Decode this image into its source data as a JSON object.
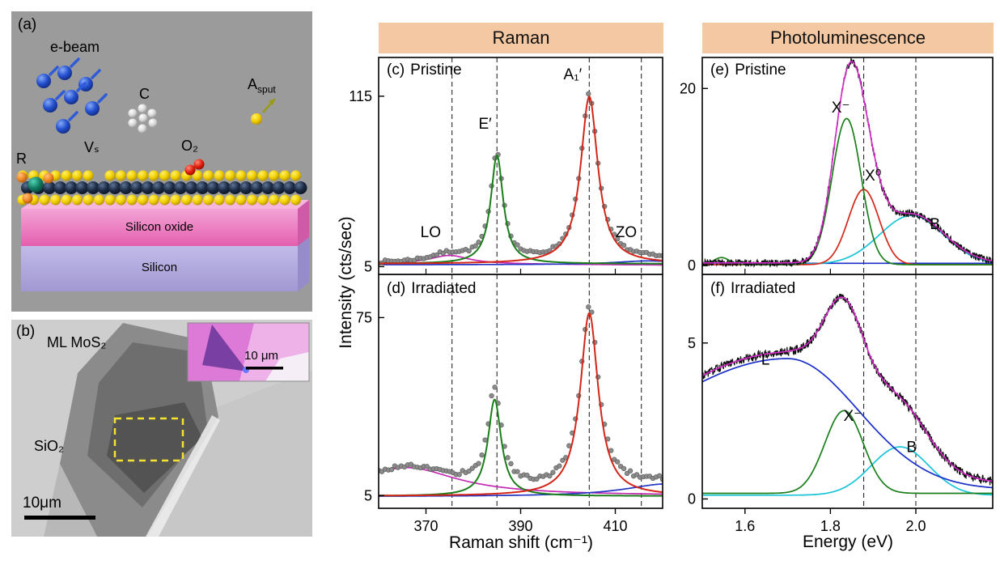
{
  "colors": {
    "header_bg": "#f3c8a2",
    "panel_a_bg": "#9b9b9b",
    "panel_b_bg": "#c7c7c7"
  },
  "headers": {
    "raman": "Raman",
    "pl": "Photoluminescence"
  },
  "axes": {
    "intensity_label": "Intensity (cts/sec)",
    "raman_xlabel": "Raman shift (cm⁻¹)",
    "pl_xlabel": "Energy (eV)"
  },
  "panel_labels": {
    "c": "(c)",
    "c_title": "Pristine",
    "d": "(d)",
    "d_title": "Irradiated",
    "e": "(e)",
    "e_title": "Pristine",
    "f": "(f)",
    "f_title": "Irradiated"
  },
  "panel_a": {
    "label": "(a)",
    "ebeam_label": "e-beam",
    "carbon_label": "C",
    "asput_label_main": "A",
    "asput_label_sub": "sput",
    "r_label": "R",
    "vs_label": "Vₛ",
    "o2_label": "O₂",
    "oxide_label": "Silicon oxide",
    "silicon_label": "Silicon"
  },
  "panel_b": {
    "label": "(b)",
    "flake_label": "ML MoS₂",
    "substrate_label": "SiO₂",
    "scalebar_label": "10μm",
    "inset_scalebar_label": "10 μm"
  },
  "chart_data": [
    {
      "id": "chart-raman-pristine",
      "type": "line",
      "panel": "(c)",
      "title": "Pristine",
      "xlabel": "Raman shift (cm⁻¹)",
      "ylabel": "Intensity (cts/sec)",
      "xlim": [
        360,
        420
      ],
      "ylim": [
        0,
        140
      ],
      "xticks": [
        370,
        390,
        410
      ],
      "xtick_labels": [],
      "yticks": [
        115,
        5
      ],
      "ytick_labels": [
        "115",
        "5"
      ],
      "dashed_x": [
        375.5,
        385,
        404.5,
        415.5
      ],
      "annotations": [
        {
          "text": "LO",
          "x": 371,
          "y": 24
        },
        {
          "text": "E′",
          "x": 382.5,
          "y": 94
        },
        {
          "text": "A₁′",
          "x": 401,
          "y": 126
        },
        {
          "text": "ZO",
          "x": 412.3,
          "y": 24
        }
      ],
      "series": [
        {
          "name": "LO-background-fit",
          "style": "line",
          "color": "#c42cb4",
          "width": 1.7,
          "baseline": 7,
          "tilt": -1,
          "peaks": [
            {
              "shape": "lorentzian",
              "center": 375,
              "amp": 5.5,
              "w": 5
            }
          ]
        },
        {
          "name": "ZO-background-fit",
          "style": "line",
          "color": "#2434c4",
          "width": 1.7,
          "baseline": 6.2,
          "peaks": [
            {
              "shape": "lorentzian",
              "center": 417,
              "amp": 2.5,
              "w": 9
            }
          ]
        },
        {
          "name": "measured-data",
          "style": "scatter",
          "color": "#8c8c8c",
          "stroke": "#5e5e5e",
          "r": 2.8,
          "samples": 88,
          "noise": 1.0,
          "seed": 7,
          "baseline": 7,
          "peaks": [
            {
              "shape": "lorentzian",
              "center": 375,
              "amp": 5.5,
              "w": 5
            },
            {
              "shape": "lorentzian",
              "center": 385,
              "amp": 70,
              "w": 1.6
            },
            {
              "shape": "lorentzian",
              "center": 404.5,
              "amp": 108,
              "w": 2.2
            },
            {
              "shape": "lorentzian",
              "center": 417,
              "amp": 2.5,
              "w": 9
            }
          ]
        },
        {
          "name": "E-prime-fit",
          "style": "line",
          "color": "#1b7e1b",
          "width": 2,
          "baseline": 6.8,
          "peaks": [
            {
              "shape": "lorentzian",
              "center": 385,
              "amp": 70,
              "w": 1.6
            }
          ]
        },
        {
          "name": "A1-prime-fit",
          "style": "line",
          "color": "#d42618",
          "width": 2,
          "baseline": 6.8,
          "peaks": [
            {
              "shape": "lorentzian",
              "center": 404.5,
              "amp": 108,
              "w": 2.2
            }
          ]
        }
      ]
    },
    {
      "id": "chart-raman-irradiated",
      "type": "line",
      "panel": "(d)",
      "title": "Irradiated",
      "xlabel": "Raman shift (cm⁻¹)",
      "ylabel": "Intensity (cts/sec)",
      "xlim": [
        360,
        420
      ],
      "ylim": [
        0,
        92
      ],
      "xticks": [
        370,
        390,
        410
      ],
      "xtick_labels": [
        "370",
        "390",
        "410"
      ],
      "yticks": [
        75,
        5
      ],
      "ytick_labels": [
        "75",
        "5"
      ],
      "dashed_x": [
        375.5,
        385,
        404.5,
        415.5
      ],
      "annotations": [],
      "series": [
        {
          "name": "defect-background-fit",
          "style": "line",
          "color": "#c42cb4",
          "width": 1.7,
          "baseline": 5,
          "peaks": [
            {
              "shape": "lorentzian",
              "center": 366,
              "amp": 11,
              "w": 13
            }
          ]
        },
        {
          "name": "background-fit",
          "style": "line",
          "color": "#2434c4",
          "width": 1.7,
          "baseline": 4.6,
          "peaks": [
            {
              "shape": "lorentzian",
              "center": 421,
              "amp": 5,
              "w": 11
            }
          ]
        },
        {
          "name": "measured-data",
          "style": "scatter",
          "color": "#8c8c8c",
          "stroke": "#5e5e5e",
          "r": 2.8,
          "samples": 88,
          "noise": 0.9,
          "seed": 17,
          "baseline": 5,
          "peaks": [
            {
              "shape": "lorentzian",
              "center": 366,
              "amp": 11,
              "w": 13
            },
            {
              "shape": "lorentzian",
              "center": 384.5,
              "amp": 38,
              "w": 1.7
            },
            {
              "shape": "lorentzian",
              "center": 404.5,
              "amp": 72,
              "w": 2.3
            },
            {
              "shape": "lorentzian",
              "center": 421,
              "amp": 5,
              "w": 11
            }
          ]
        },
        {
          "name": "E-prime-fit",
          "style": "line",
          "color": "#1b7e1b",
          "width": 2,
          "baseline": 4.8,
          "peaks": [
            {
              "shape": "lorentzian",
              "center": 384.5,
              "amp": 38,
              "w": 1.7
            }
          ]
        },
        {
          "name": "A1-prime-fit",
          "style": "line",
          "color": "#d42618",
          "width": 2,
          "baseline": 4.8,
          "peaks": [
            {
              "shape": "lorentzian",
              "center": 404.5,
              "amp": 72,
              "w": 2.3
            }
          ]
        }
      ]
    },
    {
      "id": "chart-pl-pristine",
      "type": "line",
      "panel": "(e)",
      "title": "Pristine",
      "xlabel": "Energy (eV)",
      "ylabel": "Intensity (cts/sec)",
      "xlim": [
        1.5,
        2.18
      ],
      "ylim": [
        -1,
        23.5
      ],
      "xticks": [
        1.6,
        1.8,
        2.0
      ],
      "xtick_labels": [],
      "yticks": [
        20,
        0
      ],
      "ytick_labels": [
        "20",
        "0"
      ],
      "dashed_x": [
        1.878,
        2.0
      ],
      "annotations": [
        {
          "text": "X⁻",
          "x": 1.824,
          "y": 17.3
        },
        {
          "text": "X⁰",
          "x": 1.9,
          "y": 9.6
        },
        {
          "text": "B",
          "x": 2.045,
          "y": 4.1
        }
      ],
      "series": [
        {
          "name": "baseline-fit",
          "style": "line",
          "color": "#1a2ec8",
          "width": 1.6,
          "baseline": 0.25,
          "peaks": []
        },
        {
          "name": "B-exciton-fit",
          "style": "line",
          "color": "#17c4d8",
          "width": 1.7,
          "baseline": 0.15,
          "peaks": [
            {
              "shape": "gaussian",
              "center": 1.99,
              "amp": 5.5,
              "w": 0.075
            }
          ]
        },
        {
          "name": "X0-exciton-fit",
          "style": "line",
          "color": "#d42618",
          "width": 1.7,
          "baseline": 0.1,
          "peaks": [
            {
              "shape": "gaussian",
              "center": 1.878,
              "amp": 8.5,
              "w": 0.036
            }
          ]
        },
        {
          "name": "trion-fit",
          "style": "line",
          "color": "#1b7e1b",
          "width": 1.7,
          "baseline": 0.1,
          "peaks": [
            {
              "shape": "gaussian",
              "center": 1.545,
              "amp": 0.8,
              "w": 0.018
            },
            {
              "shape": "gaussian",
              "center": 1.838,
              "amp": 16.5,
              "w": 0.034
            }
          ]
        },
        {
          "name": "measured-data",
          "style": "line",
          "color": "#101010",
          "width": 1.2,
          "noise": 0.4,
          "seed": 23,
          "samples": 740,
          "baseline": 0.3,
          "peaks": [
            {
              "shape": "gaussian",
              "center": 1.838,
              "amp": 16.5,
              "w": 0.034
            },
            {
              "shape": "gaussian",
              "center": 1.878,
              "amp": 8.5,
              "w": 0.036
            },
            {
              "shape": "gaussian",
              "center": 1.99,
              "amp": 5.5,
              "w": 0.075
            }
          ]
        },
        {
          "name": "total-fit",
          "style": "line",
          "color": "#d428c8",
          "width": 1.6,
          "baseline": 0.3,
          "peaks": [
            {
              "shape": "gaussian",
              "center": 1.838,
              "amp": 16.5,
              "w": 0.034
            },
            {
              "shape": "gaussian",
              "center": 1.878,
              "amp": 8.5,
              "w": 0.036
            },
            {
              "shape": "gaussian",
              "center": 1.99,
              "amp": 5.5,
              "w": 0.075
            }
          ]
        }
      ]
    },
    {
      "id": "chart-pl-irradiated",
      "type": "line",
      "panel": "(f)",
      "title": "Irradiated",
      "xlabel": "Energy (eV)",
      "ylabel": "Intensity (cts/sec)",
      "xlim": [
        1.5,
        2.18
      ],
      "ylim": [
        -0.3,
        7.2
      ],
      "xticks": [
        1.6,
        1.8,
        2.0
      ],
      "xtick_labels": [
        "1.6",
        "1.8",
        "2.0"
      ],
      "yticks": [
        5,
        0
      ],
      "ytick_labels": [
        "5",
        "0"
      ],
      "dashed_x": [
        1.878,
        2.0
      ],
      "annotations": [
        {
          "text": "L",
          "x": 1.648,
          "y": 4.3
        },
        {
          "text": "X⁻",
          "x": 1.852,
          "y": 2.5
        },
        {
          "text": "B",
          "x": 1.99,
          "y": 1.5
        }
      ],
      "series": [
        {
          "name": "B-exciton-fit",
          "style": "line",
          "color": "#17c4d8",
          "width": 1.7,
          "baseline": 0.12,
          "peaks": [
            {
              "shape": "gaussian",
              "center": 1.963,
              "amp": 1.55,
              "w": 0.068
            }
          ]
        },
        {
          "name": "trion-fit",
          "style": "line",
          "color": "#1b7e1b",
          "width": 1.7,
          "baseline": 0.18,
          "peaks": [
            {
              "shape": "gaussian",
              "center": 1.832,
              "amp": 2.65,
              "w": 0.045
            }
          ]
        },
        {
          "name": "defect-band-fit",
          "style": "line",
          "color": "#1a2ec8",
          "width": 1.7,
          "baseline": 0.3,
          "peaks": [
            {
              "shape": "gaussian",
              "center": 1.7,
              "amp": 4.2,
              "w": 0.165,
              "wl": 0.32
            }
          ]
        },
        {
          "name": "measured-data",
          "style": "line",
          "color": "#101010",
          "width": 1.2,
          "noise": 0.14,
          "seed": 31,
          "samples": 740,
          "baseline": 0.5,
          "peaks": [
            {
              "shape": "gaussian",
              "center": 1.7,
              "amp": 4.2,
              "w": 0.165,
              "wl": 0.32
            },
            {
              "shape": "gaussian",
              "center": 1.832,
              "amp": 2.65,
              "w": 0.045
            },
            {
              "shape": "gaussian",
              "center": 1.963,
              "amp": 1.55,
              "w": 0.068
            }
          ]
        },
        {
          "name": "total-fit",
          "style": "line",
          "color": "#d428c8",
          "width": 1.6,
          "baseline": 0.5,
          "peaks": [
            {
              "shape": "gaussian",
              "center": 1.7,
              "amp": 4.2,
              "w": 0.165,
              "wl": 0.32
            },
            {
              "shape": "gaussian",
              "center": 1.832,
              "amp": 2.65,
              "w": 0.045
            },
            {
              "shape": "gaussian",
              "center": 1.963,
              "amp": 1.55,
              "w": 0.068
            }
          ]
        }
      ]
    }
  ]
}
